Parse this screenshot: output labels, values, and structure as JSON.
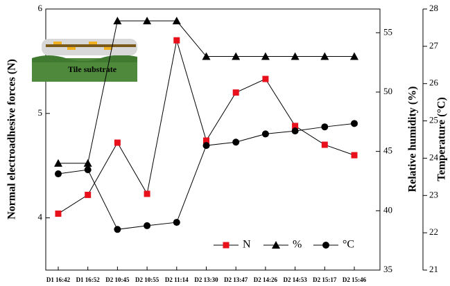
{
  "chart_data": {
    "type": "line",
    "annotation": "Tile substrate",
    "ylabel": "Normal electroadhesive forces (N)",
    "y2label": "Relative humidity (%)",
    "y3label": "Temperature (°C)",
    "categories": [
      "D1 16:42",
      "D1 16:52",
      "D2 10:45",
      "D2 10:55",
      "D2 11:14",
      "D2 13:30",
      "D2 13:47",
      "D2 14:26",
      "D2 14:53",
      "D2 15:17",
      "D2 15:46"
    ],
    "series": [
      {
        "name": "N",
        "color": "#e8101a",
        "marker": "square",
        "values": [
          4.04,
          4.22,
          4.72,
          4.23,
          5.7,
          4.74,
          5.2,
          5.33,
          4.88,
          4.7,
          4.6
        ]
      },
      {
        "name": "%",
        "color": "#000000",
        "marker": "triangle",
        "axis": "y2",
        "values": [
          44,
          44,
          56,
          56,
          56,
          53,
          53,
          53,
          53,
          53,
          53
        ]
      },
      {
        "name": "°C",
        "color": "#000000",
        "marker": "circle",
        "axis": "y3",
        "values": [
          23.58,
          23.69,
          22.09,
          22.19,
          22.28,
          24.34,
          24.43,
          24.65,
          24.73,
          24.84,
          24.93
        ]
      }
    ],
    "ylim": [
      3.5,
      6
    ],
    "yticks": [
      4,
      5,
      6
    ],
    "y2lim": [
      35,
      57
    ],
    "y2ticks": [
      35,
      40,
      45,
      50,
      55
    ],
    "y3lim": [
      21,
      28
    ],
    "y3ticks": [
      21,
      22,
      23,
      24,
      25,
      26,
      27,
      28
    ],
    "legend": "bottom-right"
  }
}
